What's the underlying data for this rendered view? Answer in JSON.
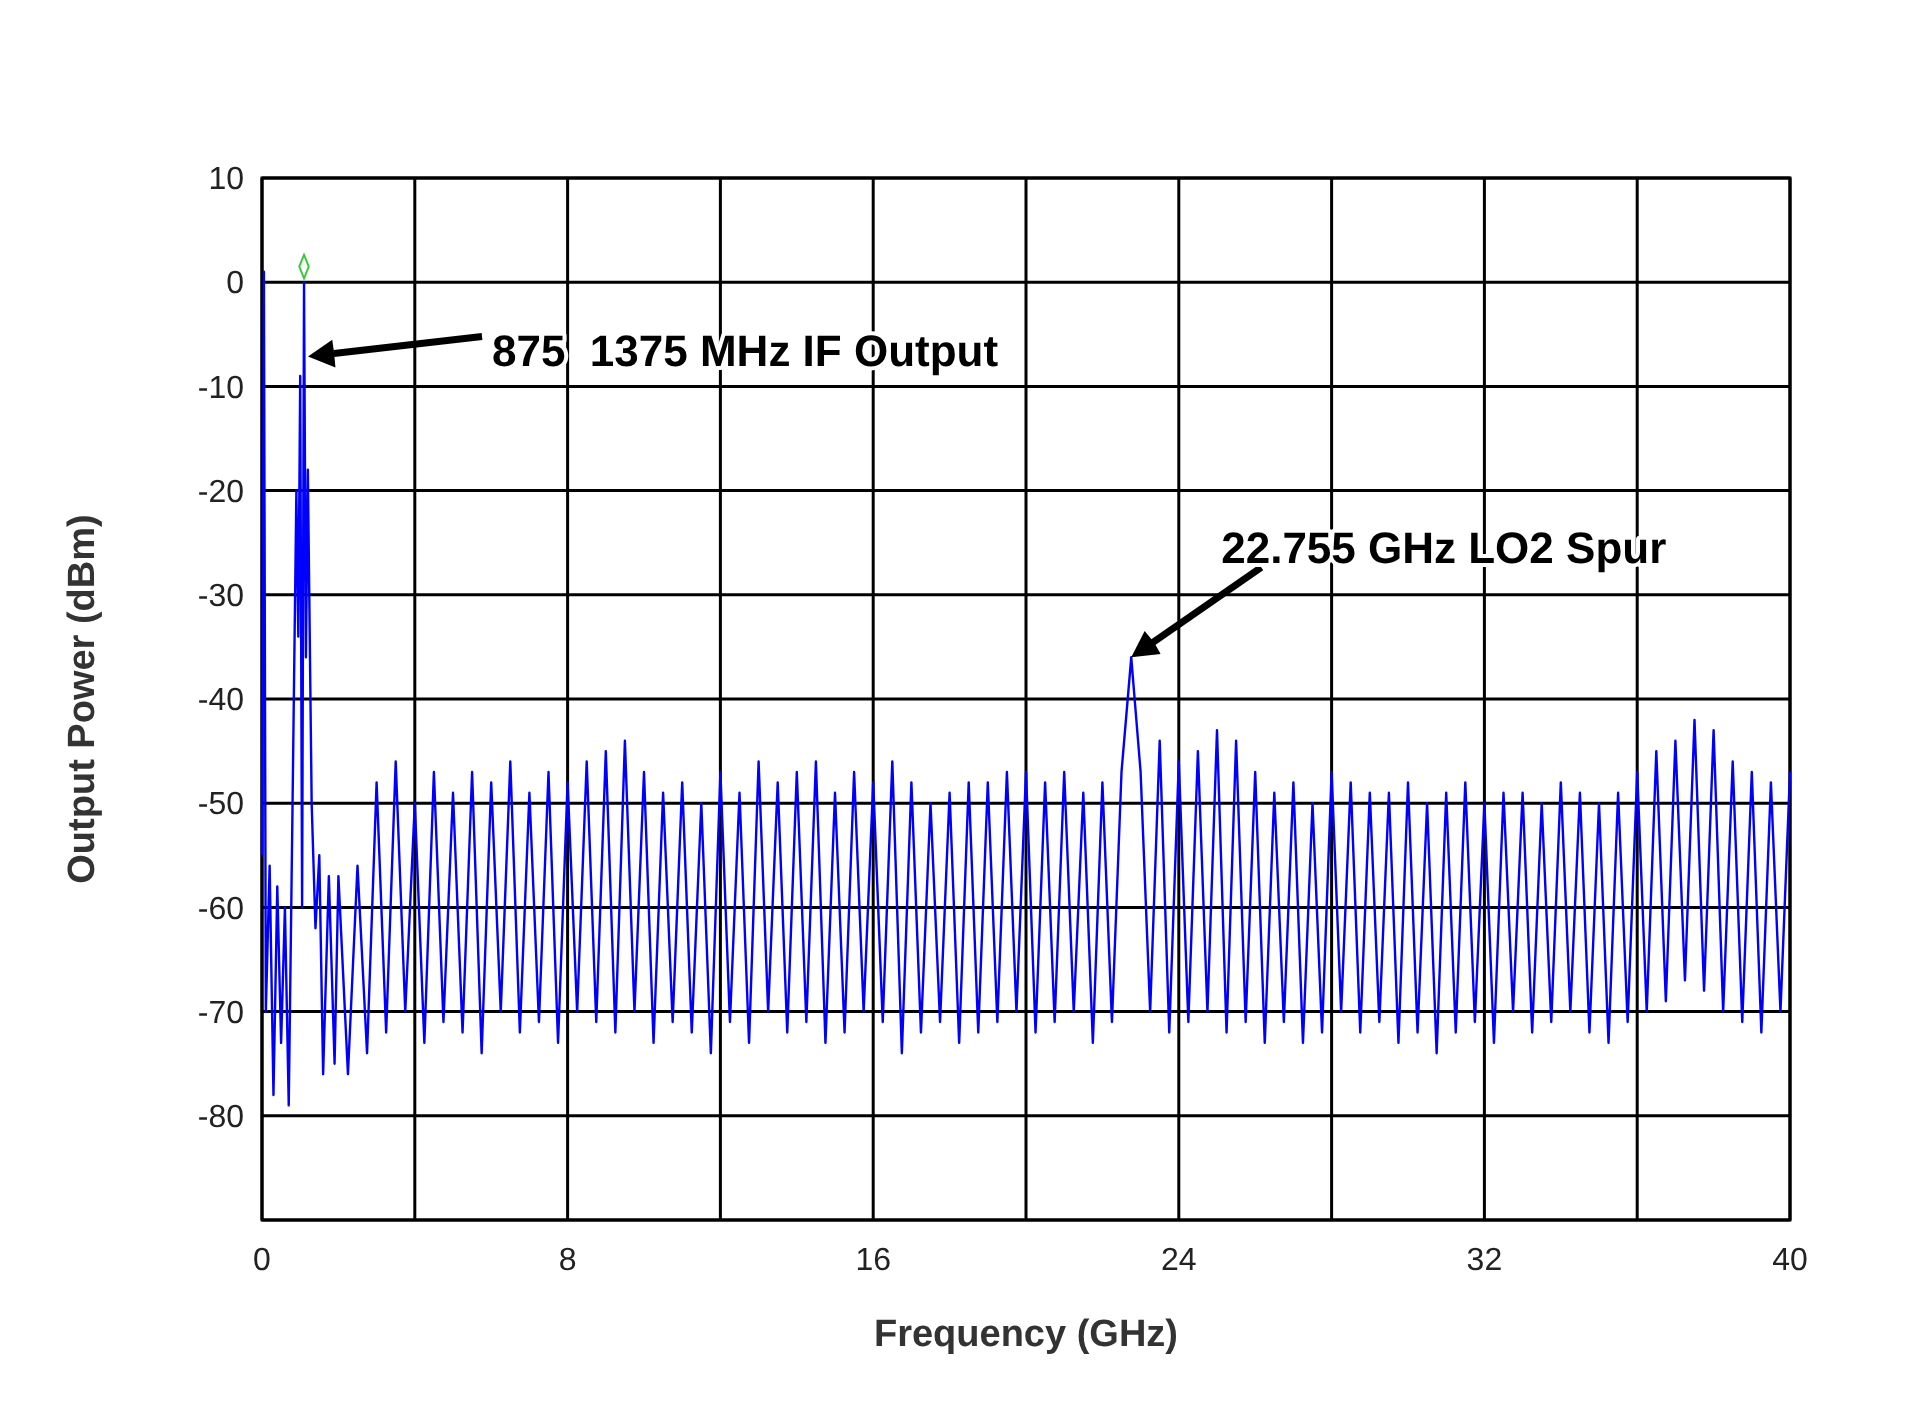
{
  "chart_data": {
    "type": "line",
    "xlabel": "Frequency (GHz)",
    "ylabel": "Output Power (dBm)",
    "xlim": [
      0,
      40
    ],
    "xticks": [
      0,
      {
        "value": 4,
        "label": null
      },
      8,
      {
        "value": 12,
        "label": null
      },
      16,
      {
        "value": 20,
        "label": null
      },
      24,
      {
        "value": 28,
        "label": null
      },
      32,
      {
        "value": 36,
        "label": null
      },
      40
    ],
    "ylim": [
      -90,
      10
    ],
    "yticks": [
      10,
      0,
      -10,
      -20,
      -30,
      -40,
      -50,
      -60,
      -70,
      -80,
      {
        "value": -90,
        "label": null
      }
    ],
    "grid": true,
    "annotations": [
      "875  1375 MHz IF Output",
      {
        "text": "22.755 GHz LO2 Spur",
        "x": 22.755,
        "y": -36
      }
    ],
    "series": [
      {
        "type": "line",
        "color": "#0000ff",
        "line_style": "solid",
        "x": [
          0,
          0.05,
          0.1,
          0.2,
          0.3,
          0.4,
          0.5,
          0.6,
          0.7,
          0.8,
          0.9,
          0.95,
          1.0,
          1.05,
          1.1,
          1.15,
          1.2,
          1.3,
          1.4,
          1.5,
          1.6,
          1.75,
          1.9,
          2,
          2.25,
          2.5,
          2.75,
          3,
          3.25,
          3.5,
          3.75,
          4,
          4.25,
          4.5,
          4.75,
          5,
          5.25,
          5.5,
          5.75,
          6,
          6.25,
          6.5,
          6.75,
          7,
          7.25,
          7.5,
          7.75,
          8,
          8.25,
          8.5,
          8.75,
          9,
          9.25,
          9.5,
          9.75,
          10,
          10.25,
          10.5,
          10.75,
          11,
          11.25,
          11.5,
          11.75,
          12,
          12.25,
          12.5,
          12.75,
          13,
          13.25,
          13.5,
          13.75,
          14,
          14.25,
          14.5,
          14.75,
          15,
          15.25,
          15.5,
          15.75,
          16,
          16.25,
          16.5,
          16.75,
          17,
          17.25,
          17.5,
          17.75,
          18,
          18.25,
          18.5,
          18.75,
          19,
          19.25,
          19.5,
          19.75,
          20,
          20.25,
          20.5,
          20.75,
          21,
          21.25,
          21.5,
          21.75,
          22,
          22.25,
          22.5,
          22.755,
          23,
          23.25,
          23.5,
          23.75,
          24,
          24.25,
          24.5,
          24.75,
          25,
          25.25,
          25.5,
          25.75,
          26,
          26.25,
          26.5,
          26.75,
          27,
          27.25,
          27.5,
          27.75,
          28,
          28.25,
          28.5,
          28.75,
          29,
          29.25,
          29.5,
          29.75,
          30,
          30.25,
          30.5,
          30.75,
          31,
          31.25,
          31.5,
          31.75,
          32,
          32.25,
          32.5,
          32.75,
          33,
          33.25,
          33.5,
          33.75,
          34,
          34.25,
          34.5,
          34.75,
          35,
          35.25,
          35.5,
          35.75,
          36,
          36.25,
          36.5,
          36.75,
          37,
          37.25,
          37.5,
          37.75,
          38,
          38.25,
          38.5,
          38.75,
          39,
          39.25,
          39.5,
          39.75,
          40
        ],
        "values": [
          -55,
          1,
          -70,
          -56,
          -78,
          -58,
          -73,
          -60,
          -79,
          -50,
          -20,
          -34,
          -9,
          -60,
          0,
          -36,
          -18,
          -50,
          -62,
          -55,
          -76,
          -57,
          -75,
          -57,
          -76,
          -56,
          -74,
          -48,
          -72,
          -46,
          -70,
          -50,
          -73,
          -47,
          -71,
          -49,
          -72,
          -47,
          -74,
          -48,
          -70,
          -46,
          -72,
          -49,
          -71,
          -47,
          -73,
          -48,
          -70,
          -46,
          -71,
          -45,
          -72,
          -44,
          -70,
          -47,
          -73,
          -49,
          -71,
          -48,
          -72,
          -50,
          -74,
          -47,
          -71,
          -49,
          -73,
          -46,
          -70,
          -48,
          -72,
          -47,
          -71,
          -46,
          -73,
          -49,
          -72,
          -47,
          -70,
          -48,
          -71,
          -46,
          -74,
          -48,
          -72,
          -50,
          -71,
          -49,
          -73,
          -48,
          -72,
          -48,
          -71,
          -47,
          -70,
          -47,
          -72,
          -48,
          -71,
          -47,
          -70,
          -49,
          -73,
          -48,
          -71,
          -47,
          -36,
          -47,
          -70,
          -44,
          -72,
          -46,
          -71,
          -45,
          -70,
          -43,
          -72,
          -44,
          -71,
          -47,
          -73,
          -49,
          -71,
          -48,
          -73,
          -50,
          -72,
          -47,
          -70,
          -48,
          -72,
          -49,
          -71,
          -49,
          -73,
          -48,
          -72,
          -50,
          -74,
          -49,
          -72,
          -48,
          -71,
          -50,
          -73,
          -49,
          -70,
          -49,
          -72,
          -50,
          -71,
          -48,
          -70,
          -49,
          -72,
          -50,
          -73,
          -49,
          -71,
          -47,
          -70,
          -45,
          -69,
          -44,
          -67,
          -42,
          -68,
          -43,
          -70,
          -46,
          -71,
          -47,
          -72,
          -48,
          -70,
          -47
        ]
      },
      {
        "type": "scatter",
        "color": "#33cc33",
        "marker": "diamond",
        "x": [
          1.1
        ],
        "values": [
          1.5
        ]
      }
    ]
  }
}
